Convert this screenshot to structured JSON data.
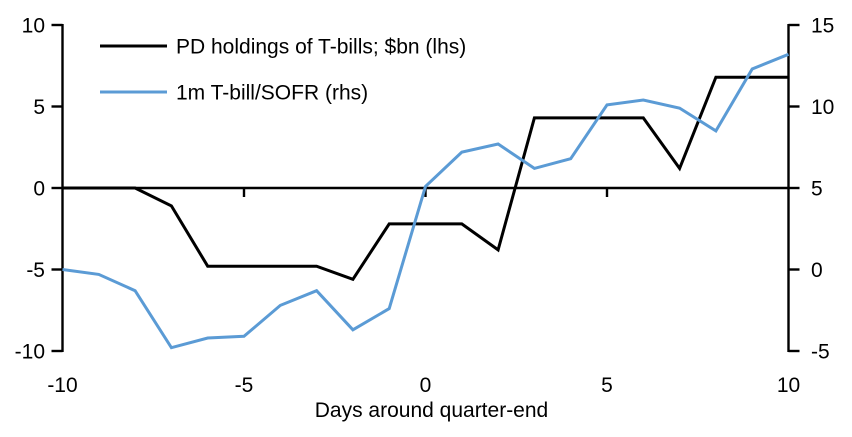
{
  "chart_data": {
    "type": "line",
    "title": "",
    "xlabel": "Days around quarter-end",
    "ylabel": "",
    "grid": false,
    "background": "#ffffff",
    "text_color": "#000000",
    "legend_position": "top-left",
    "x_axis": {
      "min": -10,
      "max": 10,
      "ticks": [
        -10,
        -5,
        0,
        5,
        10
      ]
    },
    "left_axis": {
      "min": -10,
      "max": 10,
      "ticks": [
        10,
        5,
        0,
        -5,
        -10
      ]
    },
    "right_axis": {
      "min": -5,
      "max": 15,
      "ticks": [
        15,
        10,
        5,
        0,
        -5
      ]
    },
    "x": [
      -10,
      -9,
      -8,
      -7,
      -6,
      -5,
      -4,
      -3,
      -2,
      -1,
      0,
      1,
      2,
      3,
      4,
      5,
      6,
      7,
      8,
      9,
      10
    ],
    "series": [
      {
        "name": "PD holdings of T-bills; $bn (lhs)",
        "axis": "left",
        "color": "#000000",
        "values": [
          0,
          0,
          0,
          -1.1,
          -4.8,
          -4.8,
          -4.8,
          -4.8,
          -5.6,
          -2.2,
          -2.2,
          -2.2,
          -3.8,
          4.3,
          4.3,
          4.3,
          4.3,
          1.2,
          6.8,
          6.8,
          6.8
        ]
      },
      {
        "name": "1m T-bill/SOFR (rhs)",
        "axis": "right",
        "color": "#5B9BD5",
        "values": [
          0,
          -0.3,
          -1.3,
          -4.8,
          -4.2,
          -4.1,
          -2.2,
          -1.3,
          -3.7,
          -2.4,
          5.1,
          7.2,
          7.7,
          6.2,
          6.8,
          10.1,
          10.4,
          9.9,
          8.5,
          12.3,
          13.2
        ]
      }
    ]
  }
}
